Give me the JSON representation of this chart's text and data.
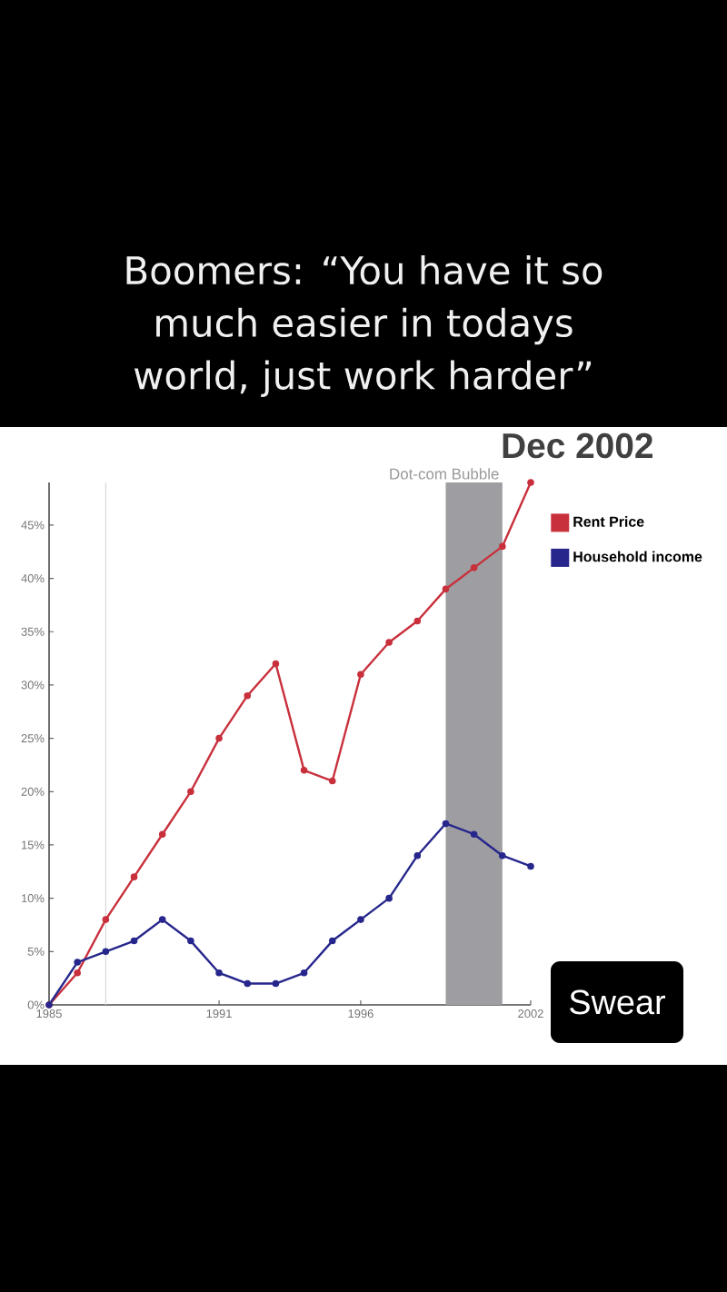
{
  "chart_data": {
    "type": "line",
    "title": "Boomers: “You have it so much easier in todays world, just work harder”",
    "x": [
      1985,
      1986,
      1987,
      1988,
      1989,
      1990,
      1991,
      1992,
      1993,
      1994,
      1995,
      1996,
      1997,
      1998,
      1999,
      2000,
      2001,
      2002
    ],
    "series": [
      {
        "name": "Rent Price",
        "color": "#c8303c",
        "values": [
          0,
          3,
          8,
          12,
          16,
          20,
          25,
          29,
          32,
          22,
          21,
          31,
          34,
          36,
          39,
          41,
          43,
          49
        ]
      },
      {
        "name": "Household income",
        "color": "#26268c",
        "values": [
          0,
          4,
          5,
          6,
          8,
          6,
          3,
          2,
          2,
          3,
          6,
          8,
          10,
          14,
          17,
          16,
          14,
          13
        ]
      }
    ],
    "xlim": [
      1985,
      2002
    ],
    "xticks": [
      1985,
      1991,
      1996,
      2002
    ],
    "ylim": [
      0,
      49
    ],
    "yticks": [
      {
        "value": 0,
        "label": "0%"
      },
      {
        "value": 5,
        "label": "5%"
      },
      {
        "value": 10,
        "label": "10%"
      },
      {
        "value": 15,
        "label": "15%"
      },
      {
        "value": 20,
        "label": "20%"
      },
      {
        "value": 25,
        "label": "25%"
      },
      {
        "value": 30,
        "label": "30%"
      },
      {
        "value": 35,
        "label": "35%"
      },
      {
        "value": 40,
        "label": "40%"
      },
      {
        "value": 45,
        "label": "45%"
      }
    ],
    "bands": [
      {
        "axis": "x",
        "from": 1999,
        "to": 2001,
        "label": "Dot-com Bubble",
        "color": "#9e9ea2"
      }
    ],
    "ref_lines": [
      {
        "axis": "x",
        "value": 1987,
        "color": "#d9d9dd"
      }
    ],
    "annotations": [
      "Dec 2002",
      "Swear"
    ],
    "legend": "top right",
    "marker": "circle",
    "line_style": "solid"
  }
}
